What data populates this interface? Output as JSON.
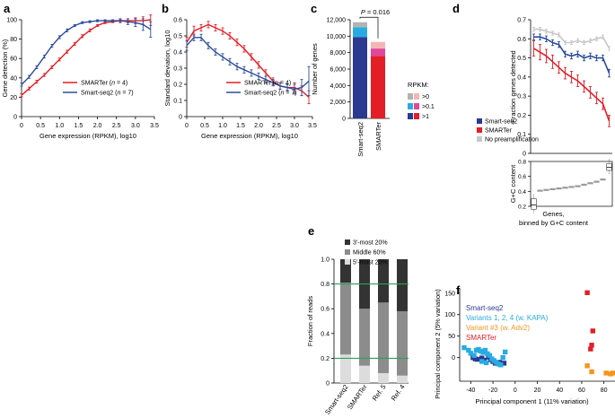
{
  "chart_data": [
    {
      "panel": "a",
      "type": "line",
      "xlabel": "Gene expression (RPKM), log10",
      "ylabel": "Gene detection (%)",
      "xlim": [
        0,
        3.5
      ],
      "ylim": [
        0,
        100
      ],
      "xticks": [
        0,
        0.5,
        1.0,
        1.5,
        2.0,
        2.5,
        3.0,
        3.5
      ],
      "xtick_labels": [
        "0",
        "0.5",
        "1.0",
        "1.5",
        "2.0",
        "2.5",
        "3.0",
        "3.5"
      ],
      "yticks": [
        0,
        20,
        40,
        60,
        80,
        100
      ],
      "legend": [
        {
          "name": "SMARTer",
          "n": "4",
          "color": "#e31e26"
        },
        {
          "name": "Smart-seq2",
          "n": "7",
          "color": "#2b4c9c"
        }
      ],
      "series": [
        {
          "name": "SMARTer",
          "color": "#e31e26",
          "x": [
            0,
            0.2,
            0.4,
            0.6,
            0.8,
            1.0,
            1.2,
            1.4,
            1.6,
            1.8,
            2.0,
            2.2,
            2.4,
            2.6,
            2.8,
            3.0,
            3.2,
            3.4
          ],
          "y": [
            22,
            29,
            36,
            43,
            51,
            59,
            67,
            75,
            83,
            89,
            94,
            97,
            98,
            99,
            99,
            99,
            99,
            100
          ],
          "err": [
            1.5,
            1.5,
            1.5,
            1.5,
            1.5,
            1.5,
            1.5,
            1.5,
            1.5,
            1.5,
            1,
            1,
            1,
            1,
            2,
            3,
            4,
            6
          ]
        },
        {
          "name": "Smart-seq2",
          "color": "#2b4c9c",
          "x": [
            0,
            0.2,
            0.4,
            0.6,
            0.8,
            1.0,
            1.2,
            1.4,
            1.6,
            1.8,
            2.0,
            2.2,
            2.4,
            2.6,
            2.8,
            3.0,
            3.2,
            3.4
          ],
          "y": [
            33,
            41,
            51,
            62,
            73,
            82,
            89,
            94,
            97,
            98,
            99,
            99,
            99,
            99,
            98,
            97,
            95,
            90
          ],
          "err": [
            1.5,
            1.5,
            1.5,
            1.5,
            1.5,
            1.5,
            1.5,
            1,
            1,
            1,
            1,
            1,
            1,
            2,
            3,
            4,
            6,
            8
          ]
        }
      ]
    },
    {
      "panel": "b",
      "type": "line",
      "xlabel": "Gene expression (RPKM), log10",
      "ylabel": "Standard deviation, log10",
      "xlim": [
        0,
        3.5
      ],
      "ylim": [
        0,
        0.6
      ],
      "xticks": [
        0,
        0.5,
        1.0,
        1.5,
        2.0,
        2.5,
        3.0,
        3.5
      ],
      "xtick_labels": [
        "0",
        "0.5",
        "1.0",
        "1.5",
        "2.0",
        "2.5",
        "3.0",
        "3.5"
      ],
      "yticks": [
        0,
        0.1,
        0.2,
        0.3,
        0.4,
        0.5,
        0.6
      ],
      "ytick_labels": [
        "0",
        "0.1",
        "0.2",
        "0.3",
        "0.4",
        "0.5",
        "0.6"
      ],
      "legend": [
        {
          "name": "SMARTer",
          "n": "4",
          "color": "#e31e26"
        },
        {
          "name": "Smart-seq2",
          "n": "7",
          "color": "#2b4c9c"
        }
      ],
      "series": [
        {
          "name": "SMARTer",
          "color": "#e31e26",
          "x": [
            0,
            0.2,
            0.4,
            0.6,
            0.8,
            1.0,
            1.2,
            1.4,
            1.6,
            1.8,
            2.0,
            2.2,
            2.4,
            2.6,
            2.8,
            3.0,
            3.2,
            3.4
          ],
          "y": [
            0.46,
            0.53,
            0.55,
            0.57,
            0.55,
            0.53,
            0.5,
            0.46,
            0.42,
            0.37,
            0.32,
            0.27,
            0.22,
            0.19,
            0.18,
            0.18,
            0.16,
            0.12
          ],
          "err": [
            0.03,
            0.03,
            0.02,
            0.02,
            0.02,
            0.02,
            0.02,
            0.02,
            0.02,
            0.02,
            0.02,
            0.02,
            0.02,
            0.02,
            0.02,
            0.03,
            0.03,
            0.04
          ]
        },
        {
          "name": "Smart-seq2",
          "color": "#2b4c9c",
          "x": [
            0,
            0.2,
            0.4,
            0.6,
            0.8,
            1.0,
            1.2,
            1.4,
            1.6,
            1.8,
            2.0,
            2.2,
            2.4,
            2.6,
            2.8,
            3.0,
            3.2,
            3.4
          ],
          "y": [
            0.44,
            0.49,
            0.49,
            0.44,
            0.4,
            0.37,
            0.34,
            0.31,
            0.29,
            0.27,
            0.25,
            0.23,
            0.21,
            0.19,
            0.18,
            0.17,
            0.18,
            0.22
          ],
          "err": [
            0.03,
            0.02,
            0.02,
            0.02,
            0.02,
            0.02,
            0.02,
            0.02,
            0.02,
            0.02,
            0.02,
            0.02,
            0.02,
            0.02,
            0.02,
            0.03,
            0.05,
            0.09
          ]
        }
      ]
    },
    {
      "panel": "c",
      "type": "bar",
      "ylabel": "Number of genes",
      "ylim": [
        0,
        12000
      ],
      "yticks": [
        0,
        2000,
        4000,
        6000,
        8000,
        10000,
        12000
      ],
      "ytick_labels": [
        "0",
        "2,000",
        "4,000",
        "6,000",
        "8,000",
        "10,000",
        "12,000"
      ],
      "categories": [
        "Smart-seq2",
        "SMARTer"
      ],
      "pvalue": "P = 0.016",
      "legend_title": "RPKM:",
      "legend": [
        ">0",
        ">0.1",
        ">1"
      ],
      "stacks": [
        {
          "category": "Smart-seq2",
          "segments": [
            {
              "level": ">1",
              "value": 9900,
              "color": "#2b3990"
            },
            {
              "level": ">0.1",
              "value": 1200,
              "color": "#29abe2"
            },
            {
              "level": ">0",
              "value": 600,
              "color": "#b3b3b3"
            }
          ]
        },
        {
          "category": "SMARTer",
          "segments": [
            {
              "level": ">1",
              "value": 7600,
              "color": "#e31e26"
            },
            {
              "level": ">0.1",
              "value": 900,
              "color": "#e0489b"
            },
            {
              "level": ">0",
              "value": 800,
              "color": "#f4b6b4"
            }
          ]
        }
      ]
    },
    {
      "panel": "d",
      "type": "line",
      "ylabel": "Fraction genes detected",
      "xlabel": "Genes, binned by G+C content",
      "ylim": [
        0,
        0.7
      ],
      "yticks": [
        0,
        0.1,
        0.2,
        0.3,
        0.4,
        0.5,
        0.6,
        0.7
      ],
      "ytick_labels": [
        "0",
        "0.1",
        "0.2",
        "0.3",
        "0.4",
        "0.5",
        "0.6",
        "0.7"
      ],
      "legend": [
        "Smart-seq2",
        "SMARTer",
        "No preamplification"
      ],
      "series": [
        {
          "name": "No preamplification",
          "color": "#c7c7c7",
          "x": [
            1,
            2,
            3,
            4,
            5,
            6,
            7,
            8,
            9,
            10,
            11,
            12,
            13
          ],
          "y": [
            0.65,
            0.65,
            0.64,
            0.63,
            0.62,
            0.58,
            0.58,
            0.59,
            0.58,
            0.59,
            0.6,
            0.61,
            0.55
          ],
          "err": [
            0.01,
            0.01,
            0.01,
            0.01,
            0.01,
            0.01,
            0.01,
            0.01,
            0.01,
            0.01,
            0.01,
            0.01,
            0.01
          ]
        },
        {
          "name": "Smart-seq2",
          "color": "#2b4c9c",
          "x": [
            1,
            2,
            3,
            4,
            5,
            6,
            7,
            8,
            9,
            10,
            11,
            12,
            13
          ],
          "y": [
            0.61,
            0.61,
            0.6,
            0.58,
            0.57,
            0.52,
            0.51,
            0.52,
            0.5,
            0.51,
            0.5,
            0.5,
            0.42
          ],
          "err": [
            0.015,
            0.015,
            0.015,
            0.015,
            0.015,
            0.015,
            0.015,
            0.015,
            0.015,
            0.015,
            0.015,
            0.015,
            0.02
          ]
        },
        {
          "name": "SMARTer",
          "color": "#e31e26",
          "x": [
            1,
            2,
            3,
            4,
            5,
            6,
            7,
            8,
            9,
            10,
            11,
            12,
            13
          ],
          "y": [
            0.55,
            0.53,
            0.51,
            0.48,
            0.45,
            0.42,
            0.4,
            0.38,
            0.35,
            0.32,
            0.29,
            0.26,
            0.17
          ],
          "err": [
            0.04,
            0.04,
            0.035,
            0.035,
            0.03,
            0.03,
            0.03,
            0.03,
            0.03,
            0.03,
            0.03,
            0.03,
            0.03
          ]
        }
      ],
      "inset": {
        "type": "box",
        "ylabel": "G+C content",
        "ylim": [
          0.2,
          0.8
        ],
        "yticks": [
          0.2,
          0.4,
          0.6,
          0.8
        ],
        "ytick_labels": [
          "0.2",
          "0.4",
          "0.6",
          "0.8"
        ],
        "medians": [
          0.22,
          0.41,
          0.42,
          0.43,
          0.44,
          0.45,
          0.46,
          0.47,
          0.49,
          0.51,
          0.53,
          0.56,
          0.72
        ],
        "q1": [
          0.16,
          0.405,
          0.415,
          0.425,
          0.435,
          0.445,
          0.455,
          0.465,
          0.48,
          0.5,
          0.52,
          0.55,
          0.68
        ],
        "q3": [
          0.3,
          0.415,
          0.425,
          0.435,
          0.445,
          0.455,
          0.465,
          0.475,
          0.495,
          0.515,
          0.54,
          0.57,
          0.77
        ]
      }
    },
    {
      "panel": "e",
      "type": "bar",
      "ylabel": "Fraction of reads",
      "ylim": [
        0,
        1.0
      ],
      "yticks": [
        0,
        0.2,
        0.4,
        0.6,
        0.8,
        1.0
      ],
      "ytick_labels": [
        "0",
        "0.2",
        "0.4",
        "0.6",
        "0.8",
        "1.0"
      ],
      "categories": [
        "Smart-seq2",
        "SMARTer",
        "Ref. 5",
        "Ref. 4"
      ],
      "legend": [
        "3′-most 20%",
        "Middle 60%",
        "5′-most 20%"
      ],
      "reference_lines": [
        0.2,
        0.8
      ],
      "stacks": [
        {
          "category": "Smart-seq2",
          "five": 0.23,
          "middle": 0.58,
          "three": 0.19
        },
        {
          "category": "SMARTer",
          "five": 0.14,
          "middle": 0.46,
          "three": 0.4
        },
        {
          "category": "Ref. 5",
          "five": 0.08,
          "middle": 0.57,
          "three": 0.35
        },
        {
          "category": "Ref. 4",
          "five": 0.06,
          "middle": 0.52,
          "three": 0.42
        }
      ]
    },
    {
      "panel": "f",
      "type": "scatter",
      "xlabel": "Principal component 1 (11% variation)",
      "ylabel": "Principal component 2 (5% variation)",
      "xlim": [
        -50,
        90
      ],
      "ylim": [
        -55,
        160
      ],
      "xticks": [
        -40,
        -20,
        0,
        20,
        40,
        60,
        80
      ],
      "yticks": [
        0,
        50,
        100,
        150
      ],
      "legend": [
        "Smart-seq2",
        "Variants 1, 2, 4 (w. KAPA)",
        "Variant #3 (w. Adv2)",
        "SMARTer"
      ],
      "series": [
        {
          "name": "Smart-seq2",
          "color": "#2b3990",
          "points": [
            [
              -38,
              0
            ],
            [
              -36,
              -3
            ],
            [
              -30,
              -1
            ],
            [
              -28,
              -6
            ],
            [
              -24,
              1
            ],
            [
              -22,
              -5
            ],
            [
              -20,
              -9
            ],
            [
              -18,
              -13
            ],
            [
              -14,
              -11
            ],
            [
              -10,
              -13
            ],
            [
              -34,
              -4
            ]
          ]
        },
        {
          "name": "Variants 1, 2, 4 (w. KAPA)",
          "color": "#29abe2",
          "points": [
            [
              -46,
              23
            ],
            [
              -42,
              17
            ],
            [
              -40,
              10
            ],
            [
              -37,
              5
            ],
            [
              -35,
              17
            ],
            [
              -33,
              19
            ],
            [
              -31,
              15
            ],
            [
              -29,
              12
            ],
            [
              -27,
              17
            ],
            [
              -25,
              9
            ],
            [
              -23,
              5
            ],
            [
              -21,
              -3
            ],
            [
              -19,
              -7
            ],
            [
              -17,
              -11
            ],
            [
              -15,
              -15
            ],
            [
              -13,
              -17
            ],
            [
              -11,
              0
            ],
            [
              -9,
              13
            ],
            [
              -26,
              -12
            ],
            [
              -30,
              -9
            ]
          ]
        },
        {
          "name": "Variant #3 (w. Adv2)",
          "color": "#f7941d",
          "points": [
            [
              65,
              -19
            ],
            [
              69,
              -33
            ],
            [
              82,
              -36
            ],
            [
              86,
              -38
            ],
            [
              88,
              -36
            ]
          ]
        },
        {
          "name": "SMARTer",
          "color": "#e31e26",
          "points": [
            [
              65,
              151
            ],
            [
              70,
              62
            ],
            [
              69,
              29
            ],
            [
              68,
              20
            ]
          ]
        }
      ]
    }
  ]
}
